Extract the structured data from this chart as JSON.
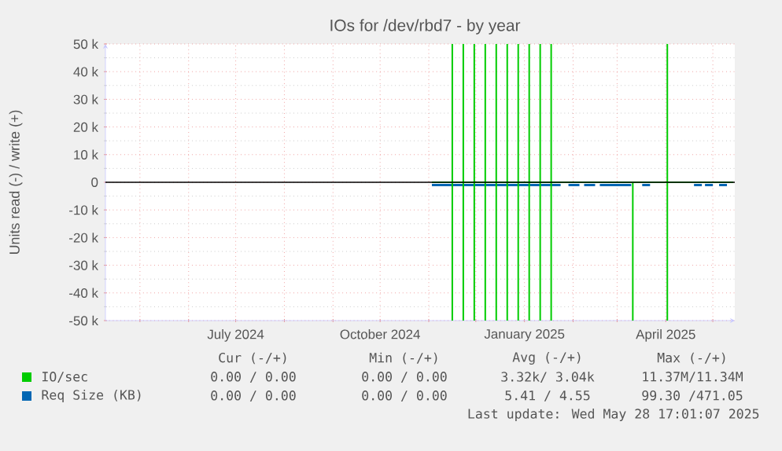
{
  "chart_data": {
    "type": "line",
    "title": "IOs for /dev/rbd7 - by year",
    "ylabel": "Units read (-) / write (+)",
    "xlim": [
      "2024-04-09",
      "2025-05-15"
    ],
    "xticks": [
      {
        "value": "2024-05-01",
        "label": null
      },
      {
        "value": "2024-06-01",
        "label": null
      },
      {
        "value": "2024-07-01",
        "label": "July 2024"
      },
      {
        "value": "2024-08-01",
        "label": null
      },
      {
        "value": "2024-09-01",
        "label": null
      },
      {
        "value": "2024-10-01",
        "label": "October 2024"
      },
      {
        "value": "2024-11-01",
        "label": null
      },
      {
        "value": "2024-12-01",
        "label": null
      },
      {
        "value": "2025-01-01",
        "label": "January 2025"
      },
      {
        "value": "2025-02-01",
        "label": null
      },
      {
        "value": "2025-03-01",
        "label": null
      },
      {
        "value": "2025-04-01",
        "label": "April 2025"
      },
      {
        "value": "2025-05-01",
        "label": null
      }
    ],
    "ylim": [
      -50000,
      50000
    ],
    "yticks": [
      {
        "value": -50000,
        "label": "-50 k"
      },
      {
        "value": -40000,
        "label": "-40 k"
      },
      {
        "value": -30000,
        "label": "-30 k"
      },
      {
        "value": -20000,
        "label": "-20 k"
      },
      {
        "value": -10000,
        "label": "-10 k"
      },
      0,
      {
        "value": 10000,
        "label": "10 k"
      },
      {
        "value": 20000,
        "label": "20 k"
      },
      {
        "value": 30000,
        "label": "30 k"
      },
      {
        "value": 40000,
        "label": "40 k"
      },
      {
        "value": 50000,
        "label": "50 k"
      }
    ],
    "grid": true,
    "legend": "bottom",
    "series": [
      {
        "name": "Req Size (KB)",
        "color": "#0066b3",
        "x": [
          "2024-11-03",
          "2025-01-24",
          "2025-01-26",
          "2025-01-29",
          "2025-02-05",
          "2025-02-06",
          "2025-02-08",
          "2025-02-15",
          "2025-02-16",
          "2025-02-18",
          "2025-03-10",
          "2025-03-14",
          "2025-03-17",
          "2025-03-22",
          "2025-04-10",
          "2025-04-19",
          "2025-04-24",
          "2025-04-25",
          "2025-04-26",
          "2025-05-01",
          "2025-05-03",
          "2025-05-05",
          "2025-05-10"
        ],
        "values": [
          -1000,
          -1000,
          null,
          -1000,
          -1000,
          null,
          -1000,
          -1000,
          null,
          -1000,
          -1000,
          null,
          -1000,
          -1000,
          null,
          -1000,
          -1000,
          null,
          -1000,
          -1000,
          null,
          -1000,
          -1000
        ]
      },
      {
        "name": "IO/sec",
        "color": "#00cc00",
        "x": [
          "2024-11-03",
          "2024-11-16",
          "2024-11-16",
          "2024-11-16",
          "2024-11-23",
          "2024-11-23",
          "2024-11-23",
          "2024-11-30",
          "2024-11-30",
          "2024-11-30",
          "2024-12-07",
          "2024-12-07",
          "2024-12-07",
          "2024-12-14",
          "2024-12-14",
          "2024-12-14",
          "2024-12-21",
          "2024-12-21",
          "2024-12-21",
          "2024-12-28",
          "2024-12-28",
          "2024-12-28",
          "2025-01-04",
          "2025-01-04",
          "2025-01-04",
          "2025-01-11",
          "2025-01-11",
          "2025-01-11",
          "2025-01-18",
          "2025-01-18",
          "2025-01-18",
          "2025-04-02",
          "2025-04-02",
          "2025-04-02",
          "2025-05-14"
        ],
        "values": [
          0,
          0,
          50000,
          0,
          0,
          50000,
          0,
          0,
          50000,
          0,
          0,
          50000,
          0,
          0,
          50000,
          0,
          0,
          50000,
          0,
          0,
          50000,
          0,
          0,
          50000,
          0,
          0,
          50000,
          0,
          0,
          50000,
          0,
          0,
          50000,
          0,
          0
        ]
      },
      {
        "color": "#00cc00",
        "x": [
          "2024-11-03",
          "2024-11-16",
          "2024-11-16",
          "2024-11-16",
          "2024-11-23",
          "2024-11-23",
          "2024-11-23",
          "2024-11-30",
          "2024-11-30",
          "2024-11-30",
          "2024-12-07",
          "2024-12-07",
          "2024-12-07",
          "2024-12-14",
          "2024-12-14",
          "2024-12-14",
          "2024-12-21",
          "2024-12-21",
          "2024-12-21",
          "2024-12-28",
          "2024-12-28",
          "2024-12-28",
          "2025-01-04",
          "2025-01-04",
          "2025-01-04",
          "2025-01-11",
          "2025-01-11",
          "2025-01-11",
          "2025-01-18",
          "2025-01-18",
          "2025-01-18",
          "2025-03-11",
          "2025-03-11",
          "2025-03-11",
          "2025-04-02",
          "2025-04-02",
          "2025-04-02",
          "2025-05-14"
        ],
        "values": [
          0,
          0,
          -50000,
          0,
          0,
          -50000,
          0,
          0,
          -50000,
          0,
          0,
          -50000,
          0,
          0,
          -50000,
          0,
          0,
          -50000,
          0,
          0,
          -50000,
          0,
          0,
          -50000,
          0,
          0,
          -50000,
          0,
          0,
          -50000,
          0,
          0,
          -50000,
          0,
          0,
          -50000,
          0,
          0
        ]
      }
    ],
    "ref_lines": [
      {
        "axis": "y",
        "value": 0,
        "color": "#000000"
      }
    ],
    "annotations": [
      "Cur (-/+)",
      "Min (-/+)",
      "Avg (-/+)",
      "Max (-/+)",
      "0.00 / 0.00",
      "0.00 / 0.00",
      "3.32k/ 3.04k",
      "11.37M/11.34M",
      "0.00 / 0.00",
      "0.00 / 0.00",
      "5.41 / 4.55",
      "99.30 /471.05",
      "Last update: Wed May 28 17:01:07 2025"
    ]
  }
}
